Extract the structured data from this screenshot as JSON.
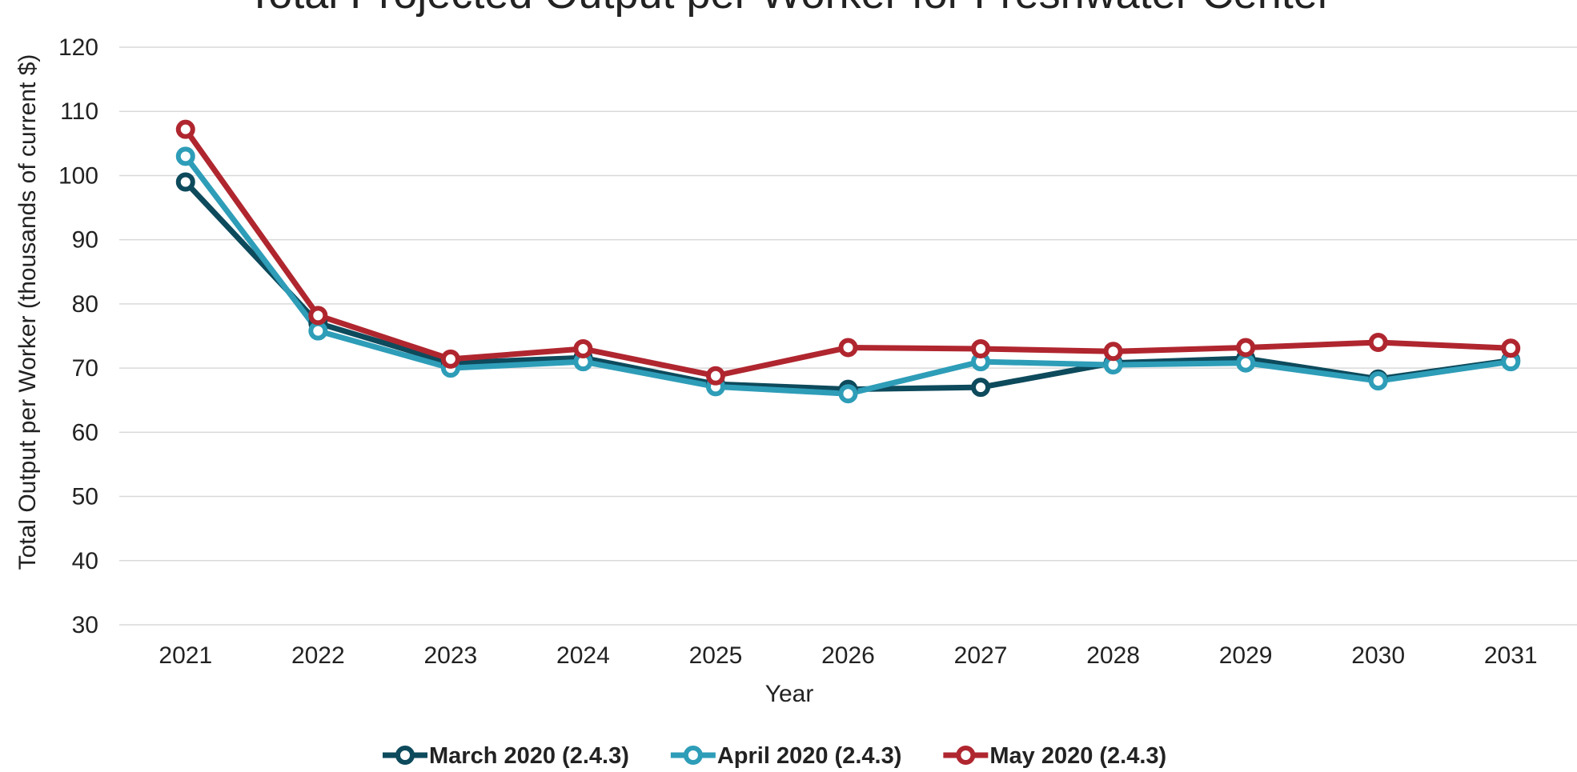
{
  "chart_data": {
    "type": "line",
    "title": "Total Projected Output per Worker for Freshwater Center",
    "x_label": "Year",
    "y_label": "Total Output per Worker (thousands of current $)",
    "categories": [
      "2021",
      "2022",
      "2023",
      "2024",
      "2025",
      "2026",
      "2027",
      "2028",
      "2029",
      "2030",
      "2031"
    ],
    "series": [
      {
        "name": "March 2020 (2.4.3)",
        "color": "#0d4a5c",
        "values": [
          99,
          77,
          70.8,
          71.6,
          67.5,
          66.7,
          67,
          70.8,
          71.5,
          68.3,
          71.2
        ]
      },
      {
        "name": "April 2020 (2.4.3)",
        "color": "#2e9db8",
        "values": [
          103,
          75.8,
          70,
          71,
          67.1,
          66,
          71,
          70.5,
          70.8,
          68,
          71
        ]
      },
      {
        "name": "May 2020 (2.4.3)",
        "color": "#b0262f",
        "values": [
          107.2,
          78.2,
          71.4,
          73,
          68.8,
          73.2,
          73,
          72.6,
          73.2,
          74,
          73.1
        ]
      }
    ],
    "ylim": [
      30,
      120
    ],
    "yticks": [
      30,
      40,
      50,
      60,
      70,
      80,
      90,
      100,
      110,
      120
    ],
    "grid": true,
    "legend": "bottom"
  }
}
